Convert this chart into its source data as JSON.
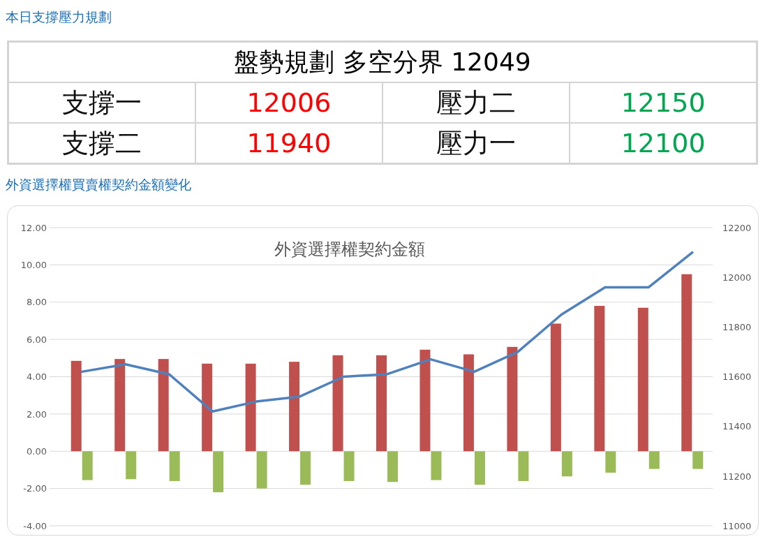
{
  "chart_data": [
    {
      "type": "other",
      "title": "本日支撐壓力規劃",
      "annotations": [
        "盤勢規劃 多空分界 12049",
        "支撐一",
        "12006",
        "壓力二",
        "12150",
        "支撐二",
        "11940",
        "壓力一",
        "12100"
      ]
    },
    {
      "type": "bar",
      "title": "外資選擇權買賣權契約金額變化",
      "subtitle": "外資選擇權契約金額",
      "categories": [
        null,
        null,
        null,
        null,
        null,
        null,
        null,
        null,
        null,
        null,
        null,
        null,
        null,
        null,
        null
      ],
      "series": [
        {
          "type": "bar",
          "color": "#c0504d",
          "values": [
            4.85,
            4.95,
            4.95,
            4.7,
            4.7,
            4.8,
            5.15,
            5.15,
            5.45,
            5.2,
            5.6,
            6.85,
            7.8,
            7.7,
            9.5
          ]
        },
        {
          "type": "bar",
          "color": "#9bbb59",
          "values": [
            -1.55,
            -1.5,
            -1.6,
            -2.2,
            -2.0,
            -1.8,
            -1.6,
            -1.65,
            -1.55,
            -1.8,
            -1.6,
            -1.35,
            -1.15,
            -0.95,
            -0.95
          ]
        },
        {
          "type": "line",
          "axis": "y2",
          "color": "#4f81bd",
          "values": [
            11620,
            11650,
            11610,
            11460,
            11500,
            11520,
            11600,
            11610,
            11670,
            11620,
            11700,
            11850,
            11960,
            11960,
            12100
          ]
        }
      ],
      "ylim": [
        -4,
        12
      ],
      "yticks": [
        {
          "value": -4,
          "label": "-4.00"
        },
        {
          "value": -2,
          "label": "-2.00"
        },
        {
          "value": 0,
          "label": "0.00"
        },
        {
          "value": 2,
          "label": "2.00"
        },
        {
          "value": 4,
          "label": "4.00"
        },
        {
          "value": 6,
          "label": "6.00"
        },
        {
          "value": 8,
          "label": "8.00"
        },
        {
          "value": 10,
          "label": "10.00"
        },
        {
          "value": 12,
          "label": "12.00"
        }
      ],
      "y2lim": [
        11000,
        12200
      ],
      "y2ticks": [
        11000,
        11200,
        11400,
        11600,
        11800,
        12000,
        12200
      ],
      "grid": "y",
      "marker": "none",
      "line_style": "solid",
      "tick_labels": "y"
    }
  ]
}
